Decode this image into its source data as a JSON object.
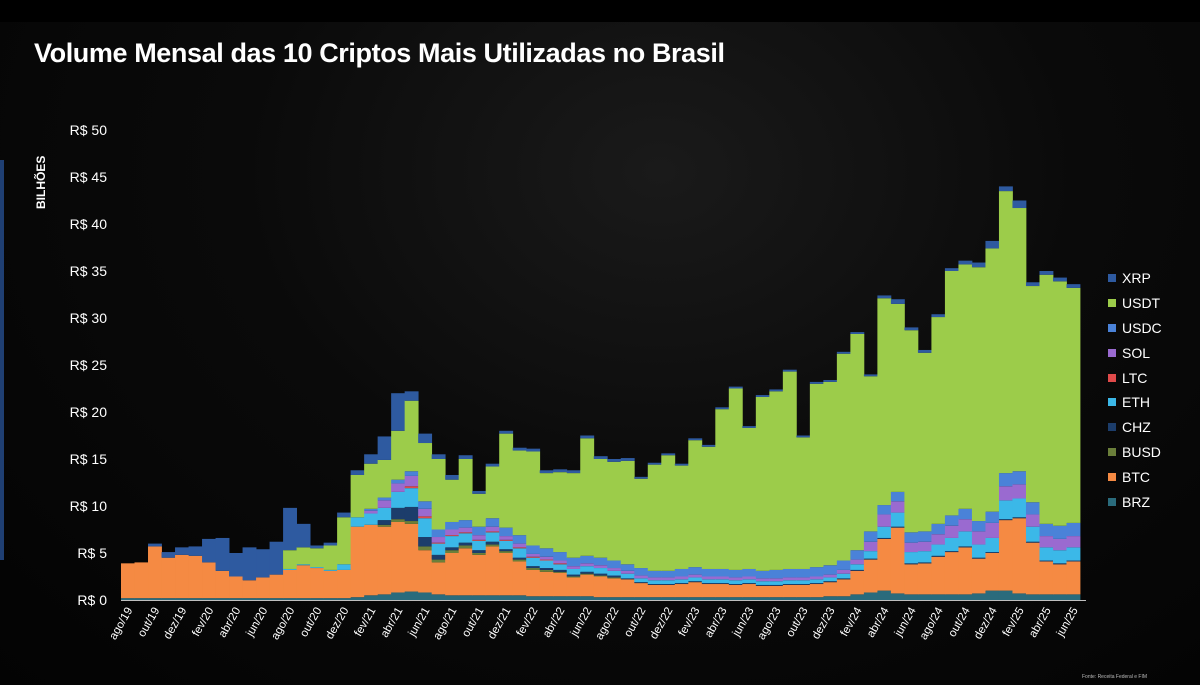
{
  "title": "Volume Mensal das 10 Criptos Mais Utilizadas no Brasil",
  "source": "Fonte: Receita Federal e FIM",
  "chart_data": {
    "type": "bar",
    "stacked": true,
    "ylabel": "BILHÕES",
    "ylim": [
      0,
      50
    ],
    "yticks": [
      "R$ 0",
      "R$ 5",
      "R$ 10",
      "R$ 15",
      "R$ 20",
      "R$ 25",
      "R$ 30",
      "R$ 35",
      "R$ 40",
      "R$ 45",
      "R$ 50"
    ],
    "grid": false,
    "legend_position": "right",
    "categories": [
      "ago/19",
      "set/19",
      "out/19",
      "nov/19",
      "dez/19",
      "jan/20",
      "fev/20",
      "mar/20",
      "abr/20",
      "mai/20",
      "jun/20",
      "jul/20",
      "ago/20",
      "set/20",
      "out/20",
      "nov/20",
      "dez/20",
      "jan/21",
      "fev/21",
      "mar/21",
      "abr/21",
      "mai/21",
      "jun/21",
      "jul/21",
      "ago/21",
      "set/21",
      "out/21",
      "nov/21",
      "dez/21",
      "jan/22",
      "fev/22",
      "mar/22",
      "abr/22",
      "mai/22",
      "jun/22",
      "jul/22",
      "ago/22",
      "set/22",
      "out/22",
      "nov/22",
      "dez/22",
      "jan/23",
      "fev/23",
      "mar/23",
      "abr/23",
      "mai/23",
      "jun/23",
      "jul/23",
      "ago/23",
      "set/23",
      "out/23",
      "nov/23",
      "dez/23",
      "jan/24",
      "fev/24",
      "mar/24",
      "abr/24",
      "mai/24",
      "jun/24",
      "jul/24",
      "ago/24",
      "set/24",
      "out/24",
      "nov/24",
      "dez/24",
      "jan/25",
      "fev/25",
      "mar/25",
      "abr/25",
      "mai/25",
      "jun/25"
    ],
    "xtick_labels": [
      "ago/19",
      "out/19",
      "dez/19",
      "fev/20",
      "abr/20",
      "jun/20",
      "ago/20",
      "out/20",
      "dez/20",
      "fev/21",
      "abr/21",
      "jun/21",
      "ago/21",
      "out/21",
      "dez/21",
      "fev/22",
      "abr/22",
      "jun/22",
      "ago/22",
      "out/22",
      "dez/22",
      "fev/23",
      "abr/23",
      "jun/23",
      "ago/23",
      "out/23",
      "dez/23",
      "fev/24",
      "abr/24",
      "jun/24",
      "ago/24",
      "out/24",
      "dez/24",
      "fev/25",
      "abr/25",
      "jun/25"
    ],
    "series": [
      {
        "name": "BRZ",
        "color": "#2a6b7c",
        "values": [
          0.2,
          0.2,
          0.2,
          0.2,
          0.2,
          0.2,
          0.2,
          0.2,
          0.2,
          0.2,
          0.2,
          0.2,
          0.2,
          0.2,
          0.2,
          0.2,
          0.2,
          0.3,
          0.5,
          0.6,
          0.8,
          0.9,
          0.8,
          0.6,
          0.5,
          0.5,
          0.5,
          0.5,
          0.5,
          0.5,
          0.4,
          0.4,
          0.4,
          0.4,
          0.4,
          0.3,
          0.3,
          0.3,
          0.3,
          0.3,
          0.3,
          0.3,
          0.3,
          0.3,
          0.3,
          0.3,
          0.3,
          0.3,
          0.3,
          0.3,
          0.3,
          0.3,
          0.4,
          0.4,
          0.6,
          0.8,
          1.0,
          0.7,
          0.6,
          0.6,
          0.6,
          0.6,
          0.6,
          0.7,
          1.0,
          1.0,
          0.7,
          0.6,
          0.6,
          0.6,
          0.6
        ]
      },
      {
        "name": "BTC",
        "color": "#f58a43",
        "values": [
          3.7,
          3.8,
          5.5,
          4.3,
          4.6,
          4.5,
          3.8,
          2.9,
          2.3,
          1.9,
          2.2,
          2.5,
          3.0,
          3.5,
          3.2,
          2.9,
          3.0,
          7.5,
          7.5,
          7.2,
          7.5,
          7.2,
          4.5,
          3.4,
          4.5,
          5.0,
          4.3,
          5.2,
          4.5,
          3.6,
          2.8,
          2.6,
          2.5,
          2.0,
          2.3,
          2.2,
          2.0,
          1.9,
          1.5,
          1.3,
          1.3,
          1.4,
          1.6,
          1.4,
          1.4,
          1.3,
          1.4,
          1.2,
          1.2,
          1.3,
          1.3,
          1.4,
          1.5,
          1.8,
          2.5,
          3.5,
          5.5,
          7.0,
          3.2,
          3.3,
          4.0,
          4.5,
          5.0,
          3.7,
          4.0,
          7.5,
          8.0,
          5.5,
          3.5,
          3.2,
          3.5
        ]
      },
      {
        "name": "BUSD",
        "color": "#6b7f3a",
        "values": [
          0,
          0,
          0,
          0,
          0,
          0,
          0,
          0,
          0,
          0,
          0,
          0,
          0,
          0,
          0,
          0,
          0,
          0,
          0,
          0.2,
          0.3,
          0.3,
          0.4,
          0.3,
          0.3,
          0.3,
          0.2,
          0.2,
          0.2,
          0.2,
          0.2,
          0.2,
          0.1,
          0.1,
          0.1,
          0.1,
          0.1,
          0,
          0,
          0,
          0,
          0,
          0,
          0,
          0,
          0,
          0,
          0,
          0,
          0,
          0,
          0,
          0,
          0,
          0,
          0,
          0,
          0,
          0,
          0,
          0,
          0,
          0,
          0,
          0,
          0,
          0,
          0,
          0,
          0,
          0
        ]
      },
      {
        "name": "CHZ",
        "color": "#1c3d6b",
        "values": [
          0,
          0,
          0,
          0,
          0,
          0,
          0,
          0,
          0,
          0,
          0,
          0,
          0,
          0,
          0,
          0,
          0,
          0,
          0,
          0.5,
          1.2,
          1.5,
          1.0,
          0.5,
          0.3,
          0.3,
          0.3,
          0.3,
          0.2,
          0.2,
          0.2,
          0.2,
          0.2,
          0.2,
          0.2,
          0.2,
          0.2,
          0.1,
          0.1,
          0.1,
          0.1,
          0.1,
          0.1,
          0.1,
          0.1,
          0.1,
          0.1,
          0.1,
          0.1,
          0.1,
          0.1,
          0.1,
          0.1,
          0.1,
          0.1,
          0.1,
          0.1,
          0.1,
          0.1,
          0.1,
          0.1,
          0.1,
          0.1,
          0.1,
          0.1,
          0.1,
          0.1,
          0.1,
          0.1,
          0.1,
          0.1
        ]
      },
      {
        "name": "ETH",
        "color": "#3bb8e8",
        "values": [
          0,
          0,
          0,
          0,
          0,
          0,
          0,
          0,
          0,
          0,
          0,
          0,
          0.1,
          0.1,
          0.1,
          0.1,
          0.6,
          1.0,
          1.2,
          1.3,
          1.7,
          2.0,
          2.0,
          1.2,
          1.2,
          1.0,
          1.0,
          1.0,
          0.9,
          1.0,
          0.9,
          0.8,
          0.6,
          0.6,
          0.6,
          0.6,
          0.5,
          0.5,
          0.4,
          0.4,
          0.4,
          0.4,
          0.4,
          0.4,
          0.4,
          0.4,
          0.4,
          0.4,
          0.4,
          0.4,
          0.4,
          0.4,
          0.4,
          0.5,
          0.6,
          0.8,
          1.2,
          1.5,
          1.2,
          1.2,
          1.2,
          1.4,
          1.6,
          1.4,
          1.5,
          2.0,
          2.0,
          1.6,
          1.4,
          1.4,
          1.4
        ]
      },
      {
        "name": "LTC",
        "color": "#e04a4a",
        "values": [
          0,
          0,
          0,
          0,
          0,
          0,
          0,
          0,
          0,
          0,
          0,
          0,
          0,
          0,
          0,
          0,
          0,
          0,
          0,
          0,
          0,
          0.2,
          0.2,
          0.1,
          0.1,
          0.1,
          0.1,
          0.1,
          0.1,
          0.1,
          0.1,
          0.1,
          0.1,
          0,
          0,
          0,
          0,
          0,
          0,
          0,
          0,
          0,
          0,
          0,
          0,
          0,
          0,
          0,
          0,
          0,
          0,
          0,
          0,
          0,
          0,
          0,
          0,
          0,
          0,
          0,
          0,
          0,
          0,
          0,
          0,
          0,
          0,
          0,
          0,
          0,
          0
        ]
      },
      {
        "name": "SOL",
        "color": "#9a6ad0",
        "values": [
          0,
          0,
          0,
          0,
          0,
          0,
          0,
          0,
          0,
          0,
          0,
          0,
          0,
          0,
          0,
          0,
          0,
          0,
          0.3,
          0.8,
          0.9,
          1.1,
          0.8,
          0.6,
          0.6,
          0.5,
          0.5,
          0.5,
          0.4,
          0.4,
          0.3,
          0.3,
          0.3,
          0.3,
          0.3,
          0.3,
          0.3,
          0.3,
          0.3,
          0.3,
          0.3,
          0.3,
          0.3,
          0.3,
          0.3,
          0.3,
          0.3,
          0.3,
          0.3,
          0.3,
          0.3,
          0.3,
          0.3,
          0.4,
          0.5,
          1.0,
          1.3,
          1.2,
          1.0,
          1.0,
          1.1,
          1.3,
          1.3,
          1.4,
          1.6,
          1.5,
          1.5,
          1.3,
          1.2,
          1.2,
          1.2
        ]
      },
      {
        "name": "USDC",
        "color": "#4a82d8",
        "values": [
          0,
          0,
          0,
          0,
          0,
          0,
          0,
          0,
          0,
          0,
          0,
          0,
          0,
          0,
          0,
          0,
          0,
          0,
          0.2,
          0.3,
          0.4,
          0.5,
          0.8,
          0.8,
          0.8,
          0.8,
          0.9,
          0.9,
          0.9,
          0.9,
          0.9,
          0.9,
          0.9,
          0.9,
          0.8,
          0.8,
          0.8,
          0.7,
          0.8,
          0.7,
          0.7,
          0.8,
          0.8,
          0.8,
          0.8,
          0.8,
          0.8,
          0.8,
          0.9,
          0.9,
          0.9,
          1.0,
          1.0,
          1.0,
          1.0,
          1.1,
          1.0,
          1.0,
          1.1,
          1.1,
          1.1,
          1.1,
          1.1,
          1.1,
          1.2,
          1.4,
          1.4,
          1.3,
          1.3,
          1.4,
          1.4
        ]
      },
      {
        "name": "USDT",
        "color": "#9ccc4a",
        "values": [
          0,
          0,
          0,
          0,
          0,
          0,
          0,
          0,
          0,
          0,
          0,
          0,
          2.0,
          1.8,
          2.0,
          2.6,
          5.0,
          4.5,
          4.8,
          4.0,
          5.2,
          7.5,
          6.2,
          7.5,
          4.5,
          6.5,
          3.5,
          5.5,
          10.0,
          9.0,
          10.0,
          8.0,
          8.5,
          9.0,
          12.5,
          10.5,
          10.5,
          11.0,
          9.5,
          11.3,
          12.3,
          11.0,
          13.5,
          13.0,
          17.0,
          19.3,
          15.0,
          18.5,
          19.0,
          21.0,
          14.0,
          19.5,
          19.5,
          22.0,
          23.0,
          16.5,
          22.0,
          20.0,
          21.5,
          19.0,
          22.0,
          26.0,
          26.0,
          27.0,
          28.0,
          30.0,
          28.0,
          23.0,
          26.5,
          26.0,
          25.0
        ]
      },
      {
        "name": "XRP",
        "color": "#2e5aa0",
        "values": [
          0,
          0,
          0.3,
          0.6,
          0.8,
          1.0,
          2.5,
          3.5,
          2.5,
          3.5,
          3.0,
          3.5,
          4.5,
          2.5,
          0.3,
          0.3,
          0.5,
          0.5,
          1.0,
          2.5,
          4.0,
          1.0,
          1.0,
          0.5,
          0.5,
          0.4,
          0.3,
          0.3,
          0.3,
          0.3,
          0.3,
          0.3,
          0.3,
          0.3,
          0.3,
          0.3,
          0.3,
          0.3,
          0.2,
          0.2,
          0.2,
          0.2,
          0.2,
          0.2,
          0.2,
          0.2,
          0.2,
          0.2,
          0.2,
          0.2,
          0.2,
          0.2,
          0.2,
          0.2,
          0.2,
          0.2,
          0.3,
          0.5,
          0.3,
          0.3,
          0.3,
          0.3,
          0.4,
          0.5,
          0.8,
          0.5,
          0.8,
          0.4,
          0.4,
          0.4,
          0.4
        ]
      }
    ]
  }
}
